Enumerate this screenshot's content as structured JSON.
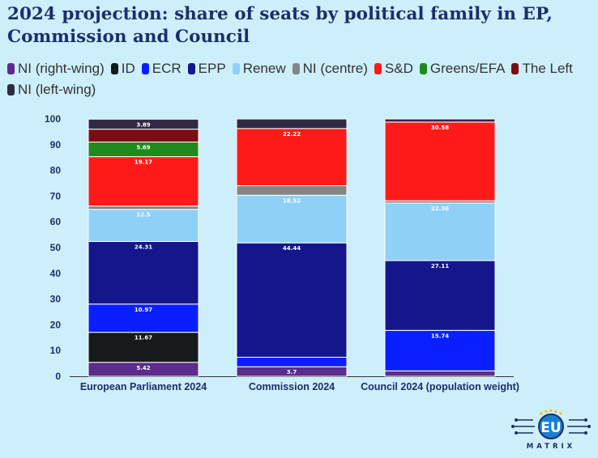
{
  "chart_data": {
    "type": "bar",
    "stacked": true,
    "title": "2024 projection: share of seats by political family in EP, Commission and Council",
    "categories": [
      "European Parliament 2024",
      "Commission 2024",
      "Council 2024 (population weight)"
    ],
    "ylim": [
      0,
      100
    ],
    "yticks": [
      0,
      10,
      20,
      30,
      40,
      50,
      60,
      70,
      80,
      90,
      100
    ],
    "legend_position": "top",
    "series": [
      {
        "name": "NI (right-wing)",
        "color": "#5b2c8c",
        "values": [
          5.42,
          3.7,
          2.1
        ],
        "labels": [
          "5.42",
          "3.7",
          ""
        ]
      },
      {
        "name": "ID",
        "color": "#161a1a",
        "values": [
          11.67,
          0,
          0
        ],
        "labels": [
          "11.67",
          "",
          ""
        ]
      },
      {
        "name": "ECR",
        "color": "#0a1fff",
        "values": [
          10.97,
          3.7,
          15.74
        ],
        "labels": [
          "10.97",
          "",
          "15.74"
        ]
      },
      {
        "name": "EPP",
        "color": "#14168c",
        "values": [
          24.31,
          44.44,
          27.11
        ],
        "labels": [
          "24.31",
          "44.44",
          "27.11"
        ]
      },
      {
        "name": "Renew",
        "color": "#8fd0f7",
        "values": [
          12.5,
          18.52,
          22.36
        ],
        "labels": [
          "12.5",
          "18.52",
          "22.36"
        ]
      },
      {
        "name": "NI (centre)",
        "color": "#858585",
        "values": [
          1.3,
          3.7,
          0.9
        ],
        "labels": [
          "",
          "",
          ""
        ]
      },
      {
        "name": "S&D",
        "color": "#ff1a1a",
        "values": [
          19.17,
          22.22,
          30.58
        ],
        "labels": [
          "19.17",
          "22.22",
          "30.58"
        ]
      },
      {
        "name": "Greens/EFA",
        "color": "#1e8a1e",
        "values": [
          5.69,
          0,
          0
        ],
        "labels": [
          "5.69",
          "",
          ""
        ]
      },
      {
        "name": "The Left",
        "color": "#7a0e14",
        "values": [
          5.0,
          0,
          0
        ],
        "labels": [
          "",
          "",
          ""
        ]
      },
      {
        "name": "NI (left-wing)",
        "color": "#302a44",
        "values": [
          3.89,
          3.72,
          1.21
        ],
        "labels": [
          "3.89",
          "",
          ""
        ]
      }
    ]
  },
  "logo": {
    "text": "MATRIX",
    "badge": "EU"
  }
}
